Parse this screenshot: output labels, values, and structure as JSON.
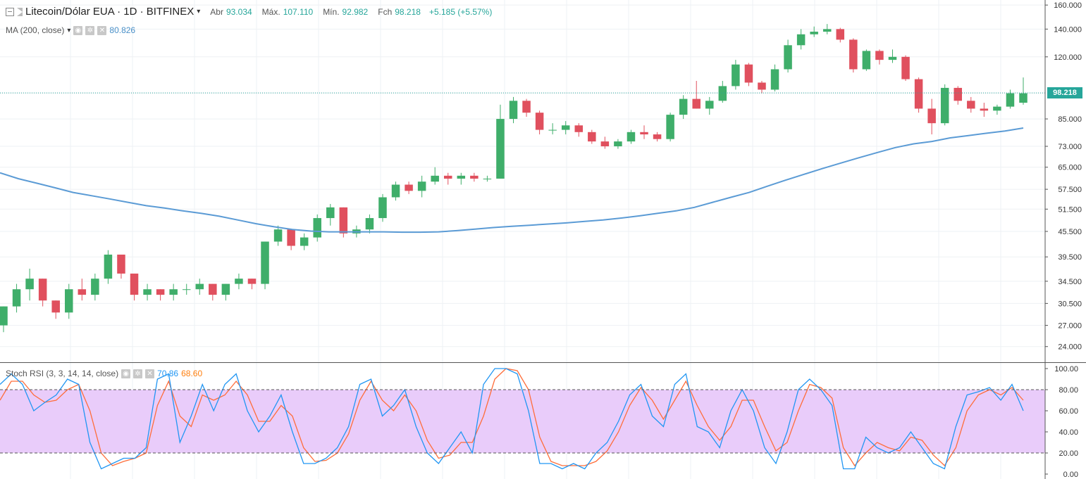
{
  "header": {
    "symbol": "Litecoin/Dólar EUA · 1D · BITFINEX",
    "open_label": "Abr",
    "open": "93.034",
    "high_label": "Máx.",
    "high": "107.110",
    "low_label": "Mín.",
    "low": "92.982",
    "close_label": "Fch",
    "close": "98.218",
    "change": "+5.185 (+5.57%)"
  },
  "ma_indicator": {
    "label": "MA (200, close)",
    "value": "80.826",
    "color": "#5b9bd5"
  },
  "stoch_indicator": {
    "label": "Stoch RSI (3, 3, 14, 14, close)",
    "k_value": "70.86",
    "d_value": "68.60",
    "k_color": "#2196f3",
    "d_color": "#ff6d3a",
    "band_color": "#e9ccfa"
  },
  "price_axis": {
    "ticks": [
      "160.000",
      "140.000",
      "120.000",
      "98.218",
      "85.000",
      "73.000",
      "65.000",
      "57.500",
      "51.500",
      "45.500",
      "39.500",
      "34.500",
      "30.500",
      "27.000",
      "24.000"
    ]
  },
  "current_price": "98.218",
  "stoch_axis": {
    "ticks": [
      "100.00",
      "80.00",
      "60.00",
      "40.00",
      "20.00",
      "0.00"
    ]
  },
  "chart_data": {
    "type": "candlestick",
    "price_scale": "log",
    "price_range": [
      22,
      162
    ],
    "up_color": "#3fae6a",
    "down_color": "#e0505e",
    "last_price": 98.218,
    "ma200": [
      63,
      61,
      59.5,
      58,
      56.5,
      55.5,
      54.5,
      53.5,
      52.5,
      51.8,
      51,
      50.3,
      49.5,
      48.5,
      47.5,
      46.7,
      46,
      45.6,
      45.4,
      45.4,
      45.4,
      45.4,
      45.3,
      45.3,
      45.4,
      45.7,
      46.1,
      46.5,
      46.8,
      47.1,
      47.4,
      47.7,
      48.1,
      48.5,
      49,
      49.6,
      50.3,
      51,
      52,
      53.5,
      55,
      56.5,
      58.5,
      60.5,
      62.5,
      64.5,
      66.5,
      68.5,
      70.5,
      72.5,
      74,
      75,
      76.5,
      77.5,
      78.5,
      79.5,
      80.826
    ],
    "candles": [
      [
        27,
        30,
        26,
        30
      ],
      [
        30,
        34,
        29,
        33
      ],
      [
        33,
        37,
        31,
        35
      ],
      [
        35,
        35,
        30,
        31
      ],
      [
        31,
        31,
        28,
        29
      ],
      [
        29,
        34,
        28,
        33
      ],
      [
        33,
        35,
        31,
        32
      ],
      [
        32,
        36,
        31,
        35
      ],
      [
        35,
        41,
        34,
        40
      ],
      [
        40,
        40,
        35,
        36
      ],
      [
        36,
        36,
        31,
        32
      ],
      [
        32,
        34,
        31,
        33
      ],
      [
        33,
        33,
        31,
        32
      ],
      [
        32,
        34,
        31,
        33
      ],
      [
        33,
        34,
        32,
        33
      ],
      [
        33,
        35,
        32,
        34
      ],
      [
        34,
        34,
        31,
        32
      ],
      [
        32,
        34,
        31,
        34
      ],
      [
        34,
        36,
        33,
        35
      ],
      [
        35,
        35,
        33,
        34
      ],
      [
        34,
        43,
        33,
        43
      ],
      [
        43,
        47,
        42,
        46
      ],
      [
        46,
        46,
        41,
        42
      ],
      [
        42,
        45,
        41,
        44
      ],
      [
        44,
        50,
        43,
        49
      ],
      [
        49,
        53,
        47,
        52
      ],
      [
        52,
        52,
        44,
        45
      ],
      [
        45,
        47,
        44,
        46
      ],
      [
        46,
        50,
        45,
        49
      ],
      [
        49,
        56,
        48,
        55
      ],
      [
        55,
        60,
        54,
        59
      ],
      [
        59,
        60,
        56,
        57
      ],
      [
        57,
        62,
        55,
        60
      ],
      [
        60,
        65,
        59,
        62
      ],
      [
        62,
        63,
        59,
        61
      ],
      [
        61,
        63,
        59,
        62
      ],
      [
        62,
        63,
        60,
        61
      ],
      [
        61,
        62,
        60,
        61
      ],
      [
        61,
        92,
        61,
        85
      ],
      [
        85,
        96,
        83,
        94
      ],
      [
        94,
        95,
        86,
        88
      ],
      [
        88,
        89,
        78,
        80
      ],
      [
        80,
        83,
        78,
        80
      ],
      [
        80,
        84,
        78,
        82
      ],
      [
        82,
        83,
        77,
        79
      ],
      [
        79,
        80,
        74,
        75
      ],
      [
        75,
        77,
        72,
        73
      ],
      [
        73,
        76,
        72,
        75
      ],
      [
        75,
        80,
        74,
        79
      ],
      [
        79,
        82,
        76,
        78
      ],
      [
        78,
        79,
        75,
        76
      ],
      [
        76,
        88,
        75,
        87
      ],
      [
        87,
        97,
        85,
        95
      ],
      [
        95,
        105,
        90,
        90
      ],
      [
        90,
        96,
        87,
        94
      ],
      [
        94,
        105,
        93,
        102
      ],
      [
        102,
        118,
        100,
        115
      ],
      [
        115,
        116,
        102,
        104
      ],
      [
        104,
        105,
        98,
        100
      ],
      [
        100,
        115,
        99,
        112
      ],
      [
        112,
        132,
        110,
        128
      ],
      [
        128,
        140,
        125,
        136
      ],
      [
        136,
        142,
        134,
        138
      ],
      [
        138,
        144,
        136,
        140
      ],
      [
        140,
        141,
        130,
        132
      ],
      [
        132,
        133,
        110,
        112
      ],
      [
        112,
        125,
        111,
        124
      ],
      [
        124,
        125,
        115,
        118
      ],
      [
        118,
        125,
        116,
        120
      ],
      [
        120,
        121,
        105,
        106
      ],
      [
        106,
        107,
        88,
        90
      ],
      [
        90,
        95,
        78,
        83
      ],
      [
        83,
        103,
        82,
        101
      ],
      [
        101,
        102,
        92,
        94
      ],
      [
        94,
        96,
        88,
        90
      ],
      [
        90,
        93,
        86,
        89
      ],
      [
        89,
        92,
        87,
        91
      ],
      [
        91,
        100,
        90,
        98
      ],
      [
        93,
        107,
        92,
        98
      ]
    ],
    "stoch_k": [
      85,
      95,
      85,
      60,
      68,
      75,
      90,
      85,
      30,
      5,
      10,
      15,
      15,
      25,
      90,
      95,
      30,
      55,
      85,
      60,
      85,
      95,
      60,
      40,
      55,
      75,
      40,
      10,
      10,
      15,
      25,
      45,
      85,
      90,
      55,
      65,
      80,
      45,
      20,
      10,
      25,
      40,
      20,
      85,
      100,
      100,
      95,
      60,
      10,
      10,
      5,
      10,
      5,
      20,
      30,
      50,
      75,
      85,
      55,
      45,
      85,
      95,
      45,
      40,
      25,
      60,
      80,
      60,
      25,
      10,
      40,
      80,
      90,
      80,
      65,
      5,
      5,
      35,
      25,
      20,
      25,
      40,
      25,
      10,
      5,
      45,
      75,
      78,
      82,
      70,
      85,
      60
    ],
    "stoch_d": [
      70,
      88,
      88,
      75,
      68,
      70,
      80,
      85,
      60,
      20,
      8,
      12,
      15,
      20,
      65,
      88,
      55,
      45,
      75,
      70,
      75,
      88,
      75,
      50,
      50,
      65,
      55,
      25,
      12,
      13,
      20,
      38,
      70,
      88,
      70,
      60,
      75,
      60,
      32,
      15,
      18,
      30,
      30,
      55,
      90,
      100,
      98,
      80,
      35,
      12,
      8,
      8,
      8,
      12,
      22,
      40,
      65,
      82,
      70,
      52,
      70,
      88,
      65,
      45,
      32,
      45,
      70,
      70,
      45,
      22,
      30,
      60,
      85,
      82,
      72,
      25,
      8,
      20,
      30,
      25,
      22,
      35,
      32,
      18,
      8,
      25,
      60,
      75,
      80,
      75,
      82,
      70
    ]
  }
}
